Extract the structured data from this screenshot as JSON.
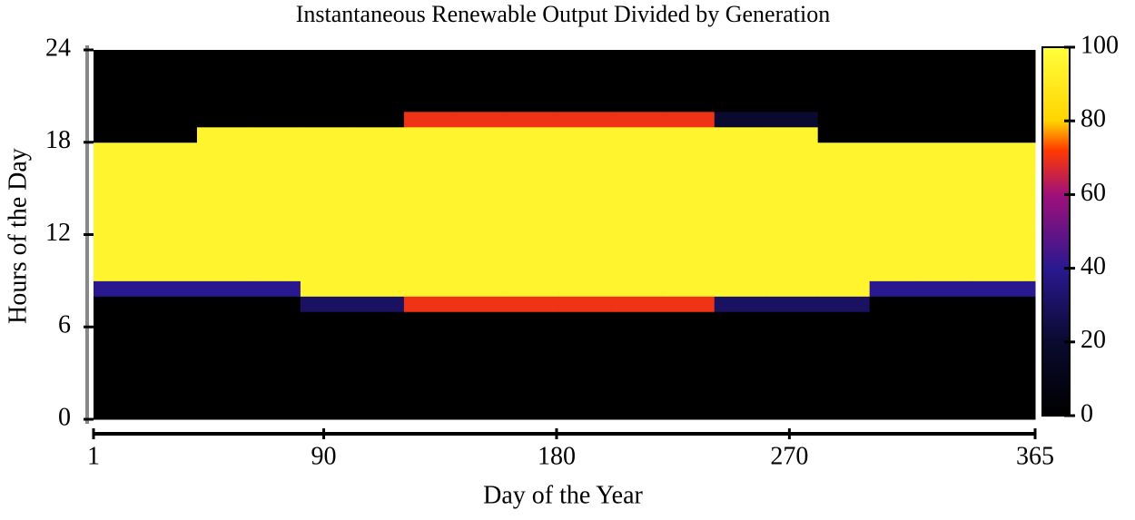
{
  "chart_data": {
    "type": "heatmap",
    "title": "Instantaneous Renewable Output Divided by Generation",
    "x_label": "Day of the Year",
    "y_label": "Hours of the Day",
    "x": [
      1,
      21,
      41,
      61,
      81,
      101,
      121,
      141,
      161,
      181,
      201,
      221,
      241,
      261,
      281,
      301,
      321,
      341,
      361
    ],
    "y": [
      0,
      1,
      2,
      3,
      4,
      5,
      6,
      7,
      8,
      9,
      10,
      11,
      12,
      13,
      14,
      15,
      16,
      17,
      18,
      19,
      20,
      21,
      22,
      23
    ],
    "values": [
      [
        0,
        0,
        0,
        0,
        0,
        0,
        0,
        0,
        40,
        95,
        95,
        95,
        95,
        95,
        95,
        95,
        95,
        95,
        0,
        0,
        0,
        0,
        0,
        0
      ],
      [
        0,
        0,
        0,
        0,
        0,
        0,
        0,
        0,
        40,
        95,
        95,
        95,
        95,
        95,
        95,
        95,
        95,
        95,
        0,
        0,
        0,
        0,
        0,
        0
      ],
      [
        0,
        0,
        0,
        0,
        0,
        0,
        0,
        0,
        40,
        95,
        95,
        95,
        95,
        95,
        95,
        95,
        95,
        95,
        95,
        0,
        0,
        0,
        0,
        0
      ],
      [
        0,
        0,
        0,
        0,
        0,
        0,
        0,
        0,
        40,
        95,
        95,
        95,
        95,
        95,
        95,
        95,
        95,
        95,
        95,
        0,
        0,
        0,
        0,
        0
      ],
      [
        0,
        0,
        0,
        0,
        0,
        0,
        0,
        30,
        95,
        95,
        95,
        95,
        95,
        95,
        95,
        95,
        95,
        95,
        95,
        0,
        0,
        0,
        0,
        0
      ],
      [
        0,
        0,
        0,
        0,
        0,
        0,
        0,
        30,
        95,
        95,
        95,
        95,
        95,
        95,
        95,
        95,
        95,
        95,
        95,
        0,
        0,
        0,
        0,
        0
      ],
      [
        0,
        0,
        0,
        0,
        0,
        0,
        0,
        70,
        95,
        95,
        95,
        95,
        95,
        95,
        95,
        95,
        95,
        95,
        95,
        70,
        0,
        0,
        0,
        0
      ],
      [
        0,
        0,
        0,
        0,
        0,
        0,
        0,
        70,
        95,
        95,
        95,
        95,
        95,
        95,
        95,
        95,
        95,
        95,
        95,
        70,
        0,
        0,
        0,
        0
      ],
      [
        0,
        0,
        0,
        0,
        0,
        0,
        0,
        70,
        95,
        95,
        95,
        95,
        95,
        95,
        95,
        95,
        95,
        95,
        95,
        70,
        0,
        0,
        0,
        0
      ],
      [
        0,
        0,
        0,
        0,
        0,
        0,
        0,
        70,
        95,
        95,
        95,
        95,
        95,
        95,
        95,
        95,
        95,
        95,
        95,
        70,
        0,
        0,
        0,
        0
      ],
      [
        0,
        0,
        0,
        0,
        0,
        0,
        0,
        70,
        95,
        95,
        95,
        95,
        95,
        95,
        95,
        95,
        95,
        95,
        95,
        70,
        0,
        0,
        0,
        0
      ],
      [
        0,
        0,
        0,
        0,
        0,
        0,
        0,
        70,
        95,
        95,
        95,
        95,
        95,
        95,
        95,
        95,
        95,
        95,
        95,
        70,
        0,
        0,
        0,
        0
      ],
      [
        0,
        0,
        0,
        0,
        0,
        0,
        0,
        30,
        95,
        95,
        95,
        95,
        95,
        95,
        95,
        95,
        95,
        95,
        95,
        20,
        0,
        0,
        0,
        0
      ],
      [
        0,
        0,
        0,
        0,
        0,
        0,
        0,
        30,
        95,
        95,
        95,
        95,
        95,
        95,
        95,
        95,
        95,
        95,
        95,
        20,
        0,
        0,
        0,
        0
      ],
      [
        0,
        0,
        0,
        0,
        0,
        0,
        0,
        30,
        95,
        95,
        95,
        95,
        95,
        95,
        95,
        95,
        95,
        95,
        0,
        0,
        0,
        0,
        0,
        0
      ],
      [
        0,
        0,
        0,
        0,
        0,
        0,
        0,
        0,
        40,
        95,
        95,
        95,
        95,
        95,
        95,
        95,
        95,
        95,
        0,
        0,
        0,
        0,
        0,
        0
      ],
      [
        0,
        0,
        0,
        0,
        0,
        0,
        0,
        0,
        40,
        95,
        95,
        95,
        95,
        95,
        95,
        95,
        95,
        95,
        0,
        0,
        0,
        0,
        0,
        0
      ],
      [
        0,
        0,
        0,
        0,
        0,
        0,
        0,
        0,
        40,
        95,
        95,
        95,
        95,
        95,
        95,
        95,
        95,
        95,
        0,
        0,
        0,
        0,
        0,
        0
      ],
      [
        0,
        0,
        0,
        0,
        0,
        0,
        0,
        0,
        40,
        95,
        95,
        95,
        95,
        95,
        95,
        95,
        95,
        95,
        0,
        0,
        0,
        0,
        0,
        0
      ]
    ],
    "xlim": [
      1,
      365
    ],
    "xticks": [
      1,
      90,
      180,
      270,
      365
    ],
    "ylim": [
      0,
      24
    ],
    "yticks": [
      0,
      6,
      12,
      18,
      24
    ],
    "clim": [
      0,
      100
    ],
    "cticks": [
      0,
      20,
      40,
      60,
      80,
      100
    ],
    "colorscale": [
      [
        0,
        "#000000"
      ],
      [
        20,
        "#0a0a30"
      ],
      [
        40,
        "#2a1890"
      ],
      [
        60,
        "#a0107a"
      ],
      [
        72,
        "#ff3a00"
      ],
      [
        80,
        "#ffd400"
      ],
      [
        100,
        "#ffff3c"
      ]
    ]
  }
}
